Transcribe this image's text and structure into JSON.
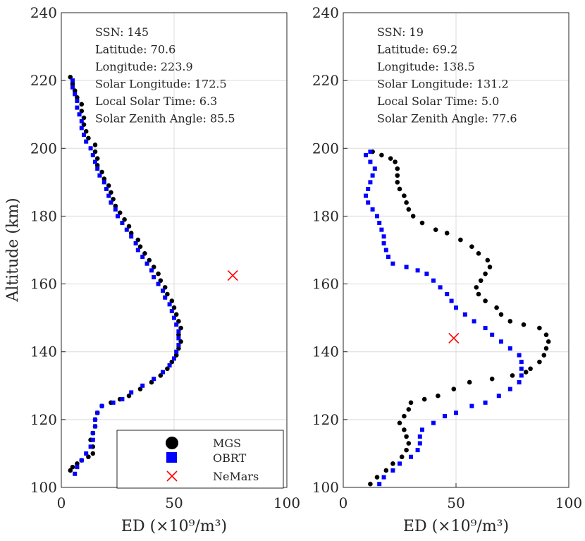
{
  "chart_data": [
    {
      "type": "scatter",
      "ylabel": "Altitude (km)",
      "xlabel": "ED (×10⁹/m³)",
      "xlim": [
        0,
        100
      ],
      "ylim": [
        100,
        240
      ],
      "xticks": [
        "0",
        "50",
        "100"
      ],
      "yticks": [
        "100",
        "120",
        "140",
        "160",
        "180",
        "200",
        "220",
        "240"
      ],
      "grid": true,
      "info": [
        "SSN: 145",
        "Latitude: 70.6",
        "Longitude: 223.9",
        "Solar Longitude: 172.5",
        "Local Solar Time: 6.3",
        "Solar Zenith Angle: 85.5"
      ],
      "legend": {
        "placement": "bottom-right",
        "entries": [
          "MGS",
          "OBRT",
          "NeMars"
        ]
      },
      "series": [
        {
          "name": "MGS",
          "marker": "circle",
          "color": "#000000",
          "points": [
            [
              4,
              105
            ],
            [
              5,
              106
            ],
            [
              7,
              107
            ],
            [
              9,
              108
            ],
            [
              12,
              109
            ],
            [
              14,
              110
            ],
            [
              14,
              112
            ],
            [
              13,
              114
            ],
            [
              14,
              116
            ],
            [
              15,
              118
            ],
            [
              15,
              120
            ],
            [
              16,
              122
            ],
            [
              18,
              124
            ],
            [
              22,
              125
            ],
            [
              26,
              126
            ],
            [
              30,
              127
            ],
            [
              35,
              129
            ],
            [
              40,
              131
            ],
            [
              44,
              133
            ],
            [
              47,
              135
            ],
            [
              49,
              137
            ],
            [
              51,
              139
            ],
            [
              52,
              141
            ],
            [
              53,
              143
            ],
            [
              52,
              145
            ],
            [
              53,
              147
            ],
            [
              52,
              149
            ],
            [
              51,
              151
            ],
            [
              50,
              153
            ],
            [
              49,
              155
            ],
            [
              47,
              157
            ],
            [
              46,
              159
            ],
            [
              44,
              161
            ],
            [
              43,
              163
            ],
            [
              41,
              165
            ],
            [
              39,
              167
            ],
            [
              37,
              169
            ],
            [
              35,
              171
            ],
            [
              34,
              173
            ],
            [
              31,
              175
            ],
            [
              30,
              177
            ],
            [
              28,
              179
            ],
            [
              26,
              181
            ],
            [
              24,
              183
            ],
            [
              23,
              185
            ],
            [
              22,
              187
            ],
            [
              21,
              189
            ],
            [
              19,
              191
            ],
            [
              18,
              193
            ],
            [
              16,
              195
            ],
            [
              16,
              197
            ],
            [
              15,
              199
            ],
            [
              15,
              201
            ],
            [
              12,
              203
            ],
            [
              11,
              205
            ],
            [
              10,
              207
            ],
            [
              10,
              209
            ],
            [
              9,
              211
            ],
            [
              9,
              213
            ],
            [
              7,
              215
            ],
            [
              6,
              217
            ],
            [
              5,
              219
            ],
            [
              4,
              221
            ]
          ]
        },
        {
          "name": "OBRT",
          "marker": "square",
          "color": "#0000ff",
          "points": [
            [
              6,
              104
            ],
            [
              7,
              106
            ],
            [
              9,
              108
            ],
            [
              11,
              110
            ],
            [
              13,
              112
            ],
            [
              14,
              114
            ],
            [
              14,
              116
            ],
            [
              15,
              118
            ],
            [
              15,
              120
            ],
            [
              16,
              122
            ],
            [
              18,
              124
            ],
            [
              23,
              125
            ],
            [
              27,
              126
            ],
            [
              31,
              128
            ],
            [
              36,
              130
            ],
            [
              41,
              132
            ],
            [
              45,
              134
            ],
            [
              48,
              136
            ],
            [
              50,
              138
            ],
            [
              51,
              140
            ],
            [
              52,
              142
            ],
            [
              52,
              144
            ],
            [
              52,
              146
            ],
            [
              51,
              148
            ],
            [
              50,
              150
            ],
            [
              49,
              152
            ],
            [
              48,
              154
            ],
            [
              46,
              156
            ],
            [
              45,
              158
            ],
            [
              43,
              160
            ],
            [
              41,
              162
            ],
            [
              40,
              164
            ],
            [
              38,
              166
            ],
            [
              36,
              168
            ],
            [
              34,
              170
            ],
            [
              33,
              172
            ],
            [
              31,
              174
            ],
            [
              29,
              176
            ],
            [
              27,
              178
            ],
            [
              25,
              180
            ],
            [
              24,
              182
            ],
            [
              22,
              184
            ],
            [
              21,
              186
            ],
            [
              20,
              188
            ],
            [
              19,
              190
            ],
            [
              17,
              192
            ],
            [
              16,
              194
            ],
            [
              15,
              196
            ],
            [
              14,
              198
            ],
            [
              13,
              200
            ],
            [
              11,
              202
            ],
            [
              10,
              204
            ],
            [
              9,
              206
            ],
            [
              9,
              208
            ],
            [
              8,
              210
            ],
            [
              7,
              212
            ],
            [
              7,
              214
            ],
            [
              6,
              216
            ],
            [
              5,
              218
            ],
            [
              5,
              220
            ]
          ]
        },
        {
          "name": "NeMars",
          "marker": "x",
          "color": "#ff0000",
          "points": [
            [
              76,
              162.5
            ]
          ]
        }
      ]
    },
    {
      "type": "scatter",
      "ylabel": "",
      "xlabel": "ED (×10⁹/m³)",
      "xlim": [
        0,
        100
      ],
      "ylim": [
        100,
        240
      ],
      "xticks": [
        "0",
        "50",
        "100"
      ],
      "yticks": [
        "100",
        "120",
        "140",
        "160",
        "180",
        "200",
        "220",
        "240"
      ],
      "grid": true,
      "info": [
        "SSN: 19",
        "Latitude: 69.2",
        "Longitude: 138.5",
        "Solar Longitude: 131.2",
        "Local Solar Time: 5.0",
        "Solar Zenith Angle: 77.6"
      ],
      "series": [
        {
          "name": "MGS",
          "marker": "circle",
          "color": "#000000",
          "points": [
            [
              12,
              101
            ],
            [
              15,
              103
            ],
            [
              19,
              105
            ],
            [
              22,
              107
            ],
            [
              26,
              109
            ],
            [
              28,
              111
            ],
            [
              29,
              113
            ],
            [
              28,
              115
            ],
            [
              27,
              117
            ],
            [
              25,
              119
            ],
            [
              27,
              121
            ],
            [
              29,
              123
            ],
            [
              30,
              125
            ],
            [
              36,
              126
            ],
            [
              42,
              127
            ],
            [
              49,
              129
            ],
            [
              56,
              131
            ],
            [
              66,
              132
            ],
            [
              75,
              133
            ],
            [
              81,
              134
            ],
            [
              83,
              135
            ],
            [
              87,
              137
            ],
            [
              89,
              139
            ],
            [
              90,
              141
            ],
            [
              91,
              143
            ],
            [
              90,
              145
            ],
            [
              87,
              147
            ],
            [
              80,
              148
            ],
            [
              74,
              149
            ],
            [
              70,
              151
            ],
            [
              68,
              153
            ],
            [
              63,
              155
            ],
            [
              60,
              157
            ],
            [
              59,
              159
            ],
            [
              61,
              161
            ],
            [
              63,
              163
            ],
            [
              65,
              165
            ],
            [
              64,
              167
            ],
            [
              60,
              169
            ],
            [
              57,
              171
            ],
            [
              52,
              173
            ],
            [
              46,
              175
            ],
            [
              41,
              176
            ],
            [
              35,
              178
            ],
            [
              31,
              180
            ],
            [
              29,
              182
            ],
            [
              28,
              184
            ],
            [
              27,
              186
            ],
            [
              25,
              188
            ],
            [
              24,
              190
            ],
            [
              24,
              192
            ],
            [
              24,
              194
            ],
            [
              23,
              196
            ],
            [
              21,
              197
            ],
            [
              17,
              198
            ],
            [
              13,
              199
            ]
          ]
        },
        {
          "name": "OBRT",
          "marker": "square",
          "color": "#0000ff",
          "points": [
            [
              16,
              101
            ],
            [
              18,
              103
            ],
            [
              22,
              105
            ],
            [
              25,
              107
            ],
            [
              30,
              109
            ],
            [
              33,
              111
            ],
            [
              34,
              113
            ],
            [
              34,
              115
            ],
            [
              35,
              117
            ],
            [
              40,
              119
            ],
            [
              45,
              121
            ],
            [
              50,
              122
            ],
            [
              57,
              124
            ],
            [
              63,
              125
            ],
            [
              69,
              127
            ],
            [
              74,
              129
            ],
            [
              78,
              131
            ],
            [
              79,
              133
            ],
            [
              79,
              135
            ],
            [
              79,
              137
            ],
            [
              78,
              139
            ],
            [
              74,
              141
            ],
            [
              70,
              143
            ],
            [
              66,
              145
            ],
            [
              63,
              147
            ],
            [
              58,
              149
            ],
            [
              54,
              151
            ],
            [
              50,
              153
            ],
            [
              48,
              155
            ],
            [
              46,
              157
            ],
            [
              43,
              159
            ],
            [
              40,
              161
            ],
            [
              37,
              163
            ],
            [
              33,
              164
            ],
            [
              28,
              165
            ],
            [
              22,
              166
            ],
            [
              20,
              168
            ],
            [
              19,
              170
            ],
            [
              18,
              172
            ],
            [
              18,
              174
            ],
            [
              17,
              176
            ],
            [
              16,
              178
            ],
            [
              15,
              180
            ],
            [
              13,
              182
            ],
            [
              11,
              184
            ],
            [
              10,
              186
            ],
            [
              11,
              188
            ],
            [
              12,
              190
            ],
            [
              13,
              192
            ],
            [
              14,
              194
            ],
            [
              12,
              196
            ],
            [
              10,
              198
            ],
            [
              12,
              199
            ]
          ]
        },
        {
          "name": "NeMars",
          "marker": "x",
          "color": "#ff0000",
          "points": [
            [
              49,
              144
            ]
          ]
        }
      ]
    }
  ]
}
